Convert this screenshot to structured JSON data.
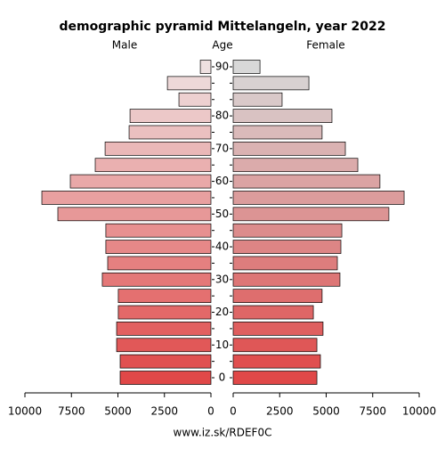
{
  "chart_data": {
    "type": "pyramid",
    "title": "demographic pyramid Mittelangeln, year 2022",
    "y_label": "Age",
    "categories": [
      "0",
      null,
      "10",
      null,
      "20",
      null,
      "30",
      null,
      "40",
      null,
      "50",
      null,
      "60",
      null,
      "70",
      null,
      "80",
      null,
      null,
      "90"
    ],
    "series": [
      {
        "name": "Male",
        "side": "left",
        "values": [
          4880,
          4880,
          5070,
          5070,
          4980,
          4980,
          5840,
          5550,
          5650,
          5650,
          8230,
          9090,
          7560,
          6220,
          5690,
          4400,
          4350,
          1720,
          2340,
          570
        ],
        "colors": [
          "#e04848",
          "#e05050",
          "#e15858",
          "#e26060",
          "#e36868",
          "#e47070",
          "#e47878",
          "#e58080",
          "#e68888",
          "#e79090",
          "#e79898",
          "#e8a0a0",
          "#e9a8a8",
          "#eab0b0",
          "#eab8b8",
          "#ebc0c0",
          "#ecc8c8",
          "#edd0d0",
          "#edd8d8",
          "#eee0e0"
        ]
      },
      {
        "name": "Female",
        "side": "right",
        "values": [
          4500,
          4690,
          4500,
          4830,
          4310,
          4780,
          5740,
          5600,
          5790,
          5840,
          8370,
          9190,
          7890,
          6700,
          6030,
          4780,
          5310,
          2630,
          4070,
          1440
        ],
        "colors": [
          "#e04848",
          "#e04f4f",
          "#df5757",
          "#df5f5f",
          "#de6666",
          "#de6e6e",
          "#dd7676",
          "#dd7d7d",
          "#dd8585",
          "#dc8c8c",
          "#dc9494",
          "#db9c9c",
          "#dba3a3",
          "#dbabab",
          "#dab2b2",
          "#dababa",
          "#d9c2c2",
          "#d9c9c9",
          "#d8d1d1",
          "#d8d8d8"
        ]
      }
    ],
    "xlim": [
      0,
      10000
    ],
    "xticks": [
      0,
      2500,
      5000,
      7500,
      10000
    ],
    "footer": "www.iz.sk/RDEF0C"
  }
}
